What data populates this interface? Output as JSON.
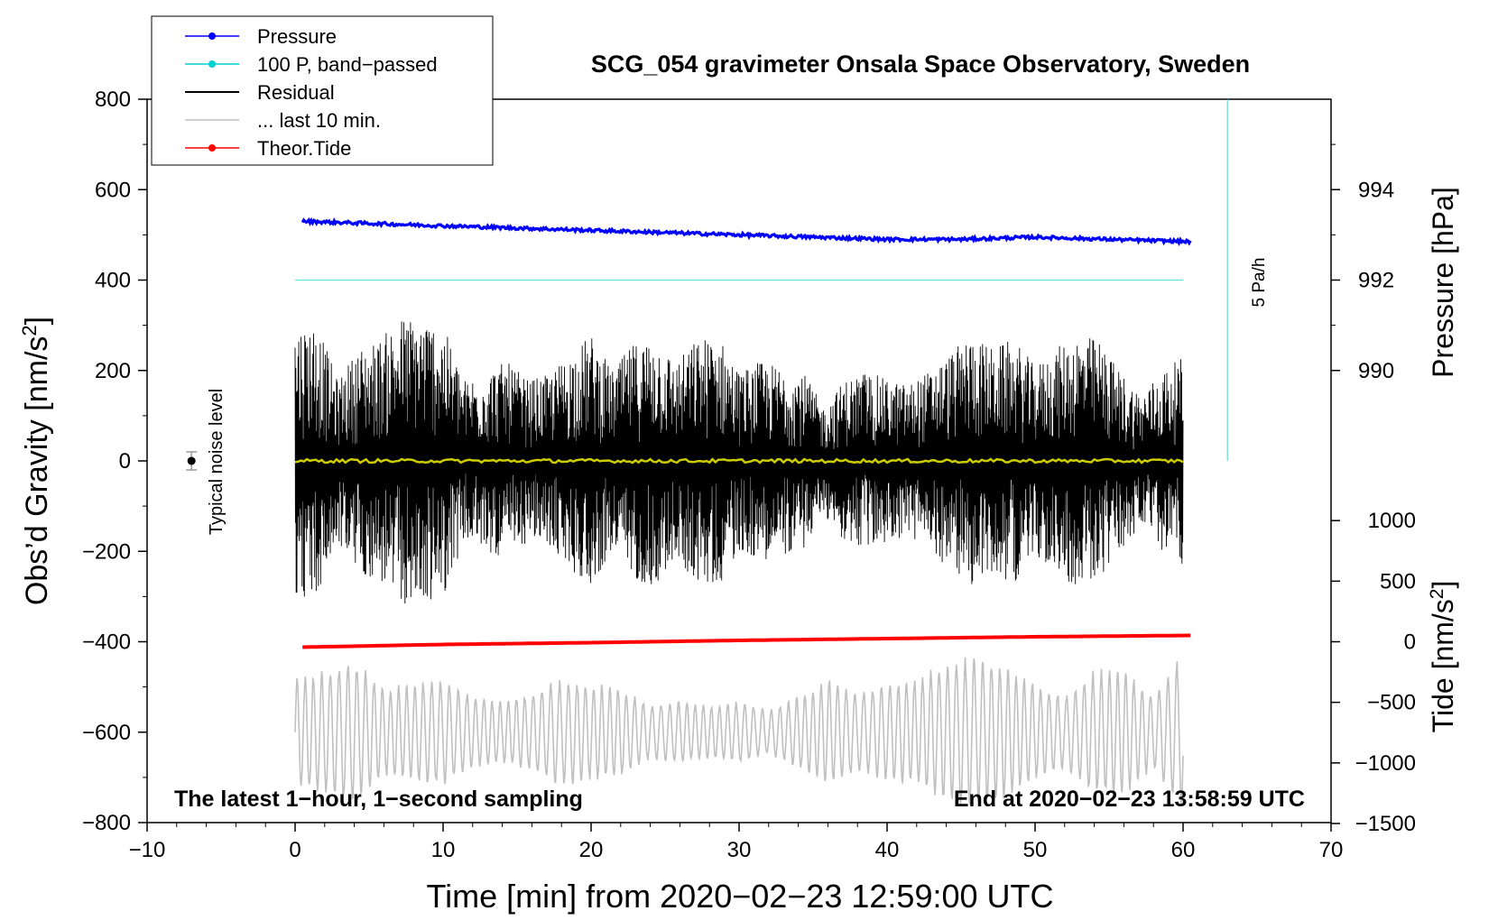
{
  "chart_data": {
    "type": "line",
    "title": "SCG_054 gravimeter Onsala Space Observatory, Sweden",
    "xlabel": "Time [min] from 2020−02−23 12:59:00 UTC",
    "ylabel_left": "Obs’d Gravity [nm/s²]",
    "ylabel_right_top": "Pressure [hPa]",
    "ylabel_right_bottom": "Tide [nm/s²]",
    "xlim": [
      -10,
      70
    ],
    "ylim_left": [
      -800,
      800
    ],
    "x_ticks": [
      -10,
      0,
      10,
      20,
      30,
      40,
      50,
      60,
      70
    ],
    "x_tick_labels": [
      "−10",
      "0",
      "10",
      "20",
      "30",
      "40",
      "50",
      "60",
      "70"
    ],
    "y_left_ticks": [
      800,
      600,
      400,
      200,
      0,
      -200,
      -400,
      -600,
      -800
    ],
    "y_left_tick_labels": [
      "800",
      "600",
      "400",
      "200",
      "0",
      "−200",
      "−400",
      "−600",
      "−800"
    ],
    "pressure_axis": {
      "ticks": [
        994,
        992,
        990
      ],
      "tick_labels": [
        "994",
        "992",
        "990"
      ],
      "gravity_at_992": 400,
      "gravity_per_hpa": 100
    },
    "tide_axis": {
      "ticks": [
        1000,
        500,
        0,
        -500,
        -1000,
        -1500
      ],
      "tick_labels": [
        "1000",
        "500",
        "0",
        "−500",
        "−1000",
        "−1500"
      ],
      "gravity_at_0": -400,
      "gravity_per_500": 134
    },
    "legend": [
      {
        "label": "Pressure",
        "color": "#0000ff",
        "marker": true
      },
      {
        "label": "100 P, band−passed",
        "color": "#00d0d0",
        "marker": true
      },
      {
        "label": "Residual",
        "color": "#000000",
        "marker": false
      },
      {
        "label": "... last 10 min.",
        "color": "#c0c0c0",
        "marker": false
      },
      {
        "label": "Theor.Tide",
        "color": "#ff0000",
        "marker": true
      }
    ],
    "series": [
      {
        "name": "Pressure",
        "unit": "hPa",
        "color": "#0000ff",
        "x": [
          0.5,
          10,
          20,
          30,
          40,
          45,
          50,
          55,
          60.5
        ],
        "values": [
          993.3,
          993.2,
          993.1,
          993.0,
          992.9,
          992.9,
          992.95,
          992.9,
          992.85
        ]
      },
      {
        "name": "100 P, band−passed",
        "unit": "nm/s²",
        "color": "#00d0d0",
        "x": [
          0,
          60
        ],
        "values": [
          400,
          400
        ]
      },
      {
        "name": "Residual",
        "unit": "nm/s²",
        "color": "#000000",
        "x_range": [
          0,
          60
        ],
        "envelope": [
          300,
          310,
          180,
          250,
          270,
          320,
          320,
          300,
          180,
          200,
          220,
          180,
          190,
          240,
          280,
          200,
          260,
          280,
          220,
          270,
          280,
          200,
          220,
          210,
          200,
          120,
          180,
          200,
          180,
          170,
          200,
          240,
          280,
          250,
          270,
          210,
          250,
          280,
          270,
          200,
          150,
          200,
          230
        ]
      },
      {
        "name": "Residual mean",
        "unit": "nm/s²",
        "color": "#cccc00",
        "x": [
          0,
          60
        ],
        "values": [
          0,
          0
        ]
      },
      {
        "name": "... last 10 min.",
        "unit": "nm/s²",
        "color": "#c0c0c0",
        "x_range": [
          0,
          60
        ],
        "baseline": -600,
        "envelope": [
          120,
          140,
          160,
          100,
          110,
          120,
          80,
          70,
          90,
          120,
          110,
          100,
          60,
          70,
          60,
          70,
          50,
          80,
          120,
          90,
          110,
          120,
          160,
          170,
          150,
          110,
          80,
          140,
          140,
          80,
          180
        ]
      },
      {
        "name": "Theor.Tide",
        "unit": "nm/s²",
        "color": "#ff0000",
        "x": [
          0.5,
          10,
          20,
          30,
          40,
          50,
          60.5
        ],
        "values": [
          -412,
          -406,
          -402,
          -397,
          -393,
          -389,
          -386
        ]
      }
    ],
    "noise_marker": {
      "label": "Typical noise level",
      "x": -7,
      "y": 0,
      "err": 20
    },
    "annotations": {
      "pressure_rate_label": "5 Pa/h",
      "bottom_left": "The latest 1−hour, 1−second sampling",
      "bottom_right": "End at 2020−02−23 13:58:59 UTC"
    }
  }
}
